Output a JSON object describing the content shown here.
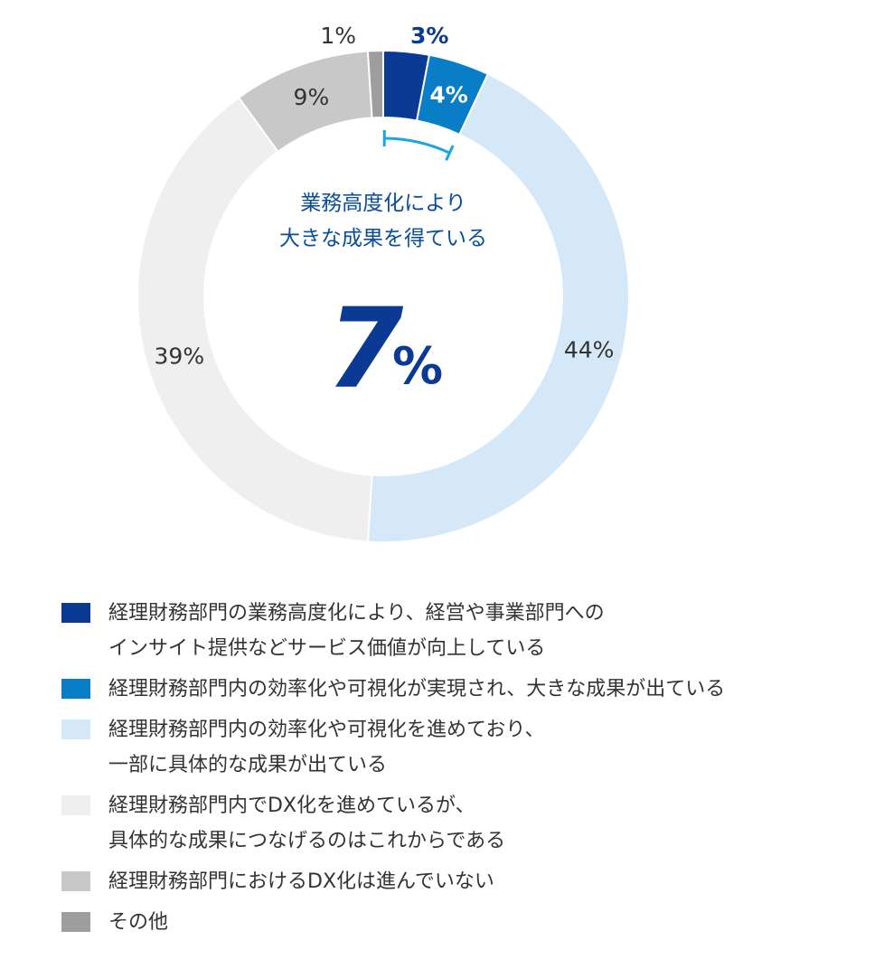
{
  "chart_data": {
    "type": "pie",
    "categories": [
      "経理財務部門の業務高度化により、経営や事業部門へのインサイト提供などサービス価値が向上している",
      "経理財務部門内の効率化や可視化が実現され、大きな成果が出ている",
      "経理財務部門内の効率化や可視化を進めており、一部に具体的な成果が出ている",
      "経理財務部門内でDX化を進めているが、具体的な成果につなげるのはこれからである",
      "経理財務部門におけるDX化は進んでいない",
      "その他"
    ],
    "values": [
      3,
      4,
      44,
      39,
      9,
      1
    ],
    "value_labels": [
      "3%",
      "4%",
      "44%",
      "39%",
      "9%",
      "1%"
    ],
    "colors": [
      "#0a3a93",
      "#0a7dc7",
      "#d4e8f7",
      "#efefef",
      "#c8c8c8",
      "#9e9e9e"
    ],
    "label_colors": [
      "#0a3a93",
      "#ffffff",
      "#333333",
      "#333333",
      "#333333",
      "#333333"
    ],
    "donut": true,
    "center": {
      "caption_line1": "業務高度化により",
      "caption_line2": "大きな成果を得ている",
      "value": "7",
      "unit": "%"
    },
    "bracket_color": "#1aa6e0"
  },
  "legend": {
    "items": [
      {
        "lines": [
          "経理財務部門の業務高度化により、経営や事業部門への",
          "インサイト提供などサービス価値が向上している"
        ],
        "color": "#0a3a93"
      },
      {
        "lines": [
          "経理財務部門内の効率化や可視化が実現され、大きな成果が出ている"
        ],
        "color": "#0a7dc7"
      },
      {
        "lines": [
          "経理財務部門内の効率化や可視化を進めており、",
          "一部に具体的な成果が出ている"
        ],
        "color": "#d4e8f7"
      },
      {
        "lines": [
          "経理財務部門内でDX化を進めているが、",
          "具体的な成果につなげるのはこれからである"
        ],
        "color": "#efefef"
      },
      {
        "lines": [
          "経理財務部門におけるDX化は進んでいない"
        ],
        "color": "#c8c8c8"
      },
      {
        "lines": [
          "その他"
        ],
        "color": "#9e9e9e"
      }
    ]
  }
}
